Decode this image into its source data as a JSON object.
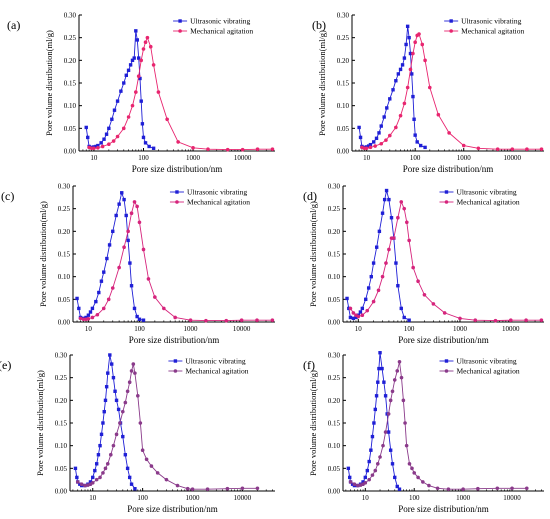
{
  "colors": {
    "ultrasonic": "#1f1fd6",
    "mechanical_ab": "#e8256f",
    "mechanical_cd": "#d6247c",
    "mechanical_ef": "#8a3a8a",
    "axis": "#000000"
  },
  "chart_data": [
    {
      "type": "line",
      "panel_label": "(a)",
      "xlabel": "Pore size distribution/nm",
      "ylabel": "Pore volume distribution(ml/g)",
      "x_scale": "log",
      "xlim": [
        5,
        45000
      ],
      "ylim": [
        0,
        0.3
      ],
      "x_tick_labels": [
        "10",
        "100",
        "1000",
        "10000"
      ],
      "y_tick_labels": [
        "0.00",
        "0.05",
        "0.10",
        "0.15",
        "0.20",
        "0.25",
        "0.30"
      ],
      "legend_position": "top-right",
      "series": [
        {
          "name": "Ultrasonic vibrating",
          "color_key": "ultrasonic",
          "marker": "square",
          "x": [
            7,
            7.5,
            8,
            9,
            10,
            11,
            12,
            14,
            16,
            18,
            20,
            23,
            26,
            30,
            35,
            40,
            45,
            50,
            55,
            60,
            65,
            70,
            75,
            80,
            85,
            90,
            95,
            100,
            110,
            130,
            160
          ],
          "y": [
            0.052,
            0.03,
            0.01,
            0.008,
            0.009,
            0.01,
            0.012,
            0.018,
            0.026,
            0.037,
            0.05,
            0.07,
            0.09,
            0.11,
            0.132,
            0.15,
            0.167,
            0.178,
            0.19,
            0.2,
            0.205,
            0.265,
            0.245,
            0.205,
            0.16,
            0.11,
            0.06,
            0.03,
            0.018,
            0.01,
            0.006
          ]
        },
        {
          "name": "Mechanical agitation",
          "color_key": "mechanical_ab",
          "marker": "circle",
          "x": [
            8,
            9,
            10,
            12,
            15,
            20,
            25,
            30,
            40,
            50,
            60,
            70,
            80,
            90,
            100,
            110,
            120,
            140,
            160,
            200,
            300,
            500,
            1000,
            2000,
            5000,
            10000,
            20000,
            40000
          ],
          "y": [
            0.008,
            0.006,
            0.006,
            0.007,
            0.01,
            0.015,
            0.022,
            0.032,
            0.05,
            0.075,
            0.1,
            0.13,
            0.165,
            0.2,
            0.225,
            0.24,
            0.25,
            0.23,
            0.19,
            0.13,
            0.07,
            0.02,
            0.007,
            0.004,
            0.003,
            0.003,
            0.004,
            0.004
          ]
        }
      ]
    },
    {
      "type": "line",
      "panel_label": "(b)",
      "xlabel": "Pore size distribution/nm",
      "ylabel": "Pore volume distribution(ml/g)",
      "x_scale": "log",
      "xlim": [
        5,
        45000
      ],
      "ylim": [
        0,
        0.3
      ],
      "x_tick_labels": [
        "10",
        "100",
        "1000",
        "10000"
      ],
      "y_tick_labels": [
        "0.00",
        "0.05",
        "0.10",
        "0.15",
        "0.20",
        "0.25",
        "0.30"
      ],
      "legend_position": "top-right",
      "series": [
        {
          "name": "Ultrasonic vibrating",
          "color_key": "ultrasonic",
          "marker": "square",
          "x": [
            7,
            7.5,
            8,
            9,
            10,
            11,
            12,
            14,
            16,
            18,
            20,
            23,
            26,
            30,
            35,
            40,
            45,
            50,
            55,
            60,
            65,
            70,
            75,
            80,
            85,
            90,
            95,
            100,
            110,
            130,
            160
          ],
          "y": [
            0.052,
            0.03,
            0.01,
            0.008,
            0.009,
            0.011,
            0.014,
            0.02,
            0.028,
            0.04,
            0.055,
            0.075,
            0.095,
            0.115,
            0.135,
            0.155,
            0.17,
            0.18,
            0.19,
            0.205,
            0.235,
            0.275,
            0.25,
            0.215,
            0.17,
            0.12,
            0.07,
            0.035,
            0.02,
            0.012,
            0.008
          ]
        },
        {
          "name": "Mechanical agitation",
          "color_key": "mechanical_ab",
          "marker": "circle",
          "x": [
            8,
            9,
            10,
            12,
            15,
            20,
            25,
            30,
            40,
            50,
            60,
            70,
            80,
            90,
            100,
            110,
            120,
            140,
            160,
            200,
            300,
            500,
            1000,
            2000,
            5000,
            10000,
            20000,
            40000
          ],
          "y": [
            0.008,
            0.006,
            0.006,
            0.008,
            0.011,
            0.016,
            0.024,
            0.034,
            0.052,
            0.078,
            0.105,
            0.14,
            0.18,
            0.215,
            0.24,
            0.255,
            0.258,
            0.235,
            0.2,
            0.14,
            0.08,
            0.04,
            0.012,
            0.006,
            0.004,
            0.004,
            0.004,
            0.004
          ]
        }
      ]
    },
    {
      "type": "line",
      "panel_label": "(c)",
      "xlabel": "Pore size distribution/nm",
      "ylabel": "Pore volume distribution(ml/g)",
      "x_scale": "log",
      "xlim": [
        5,
        45000
      ],
      "ylim": [
        0,
        0.3
      ],
      "x_tick_labels": [
        "10",
        "100",
        "1000",
        "10000"
      ],
      "y_tick_labels": [
        "0.00",
        "0.05",
        "0.10",
        "0.15",
        "0.20",
        "0.25",
        "0.30"
      ],
      "legend_position": "top-right",
      "series": [
        {
          "name": "Ultrasonic vibrating",
          "color_key": "ultrasonic",
          "marker": "square",
          "x": [
            6,
            6.5,
            7,
            8,
            9,
            10,
            11,
            12,
            14,
            16,
            18,
            20,
            23,
            26,
            30,
            35,
            40,
            45,
            50,
            55,
            60,
            65,
            70,
            80,
            90,
            100,
            120
          ],
          "y": [
            0.052,
            0.03,
            0.01,
            0.008,
            0.01,
            0.015,
            0.022,
            0.03,
            0.045,
            0.065,
            0.09,
            0.11,
            0.14,
            0.17,
            0.2,
            0.235,
            0.26,
            0.285,
            0.27,
            0.235,
            0.18,
            0.13,
            0.08,
            0.03,
            0.012,
            0.006,
            0.004
          ]
        },
        {
          "name": "Mechanical agitation",
          "color_key": "mechanical_cd",
          "marker": "circle",
          "x": [
            7,
            8,
            9,
            10,
            12,
            15,
            20,
            25,
            30,
            40,
            50,
            60,
            70,
            80,
            90,
            100,
            120,
            150,
            200,
            300,
            500,
            1000,
            2000,
            5000,
            10000,
            20000,
            40000
          ],
          "y": [
            0.008,
            0.006,
            0.006,
            0.007,
            0.01,
            0.016,
            0.03,
            0.05,
            0.075,
            0.12,
            0.165,
            0.2,
            0.24,
            0.265,
            0.255,
            0.22,
            0.16,
            0.095,
            0.055,
            0.03,
            0.01,
            0.004,
            0.003,
            0.003,
            0.004,
            0.004,
            0.004
          ]
        }
      ]
    },
    {
      "type": "line",
      "panel_label": "(d)",
      "xlabel": "Pore size distribution/nm",
      "ylabel": "Pore volume distribution(ml/g)",
      "x_scale": "log",
      "xlim": [
        5,
        45000
      ],
      "ylim": [
        0,
        0.3
      ],
      "x_tick_labels": [
        "10",
        "100",
        "1000",
        "10000"
      ],
      "y_tick_labels": [
        "0.00",
        "0.05",
        "0.10",
        "0.15",
        "0.20",
        "0.25",
        "0.30"
      ],
      "legend_position": "top-right",
      "series": [
        {
          "name": "Ultrasonic vibrating",
          "color_key": "ultrasonic",
          "marker": "square",
          "x": [
            6,
            6.5,
            7,
            8,
            9,
            10,
            11,
            12,
            14,
            16,
            18,
            20,
            23,
            26,
            30,
            33,
            36,
            40,
            45,
            50,
            55,
            60,
            70,
            80,
            100
          ],
          "y": [
            0.052,
            0.03,
            0.01,
            0.008,
            0.01,
            0.015,
            0.022,
            0.03,
            0.05,
            0.075,
            0.1,
            0.13,
            0.165,
            0.2,
            0.24,
            0.27,
            0.29,
            0.27,
            0.23,
            0.185,
            0.13,
            0.08,
            0.03,
            0.01,
            0.004
          ]
        },
        {
          "name": "Mechanical agitation",
          "color_key": "mechanical_cd",
          "marker": "circle",
          "x": [
            7,
            8,
            9,
            10,
            12,
            15,
            20,
            25,
            30,
            35,
            40,
            45,
            50,
            60,
            70,
            80,
            90,
            100,
            120,
            150,
            200,
            300,
            500,
            1000,
            2000,
            5000,
            10000,
            20000,
            40000
          ],
          "y": [
            0.03,
            0.02,
            0.015,
            0.012,
            0.015,
            0.025,
            0.045,
            0.07,
            0.1,
            0.13,
            0.16,
            0.185,
            0.185,
            0.23,
            0.265,
            0.25,
            0.22,
            0.18,
            0.12,
            0.09,
            0.06,
            0.04,
            0.02,
            0.008,
            0.004,
            0.003,
            0.004,
            0.004,
            0.004
          ]
        }
      ]
    },
    {
      "type": "line",
      "panel_label": "(e)",
      "xlabel": "Pore size distribution/nm",
      "ylabel": "Pore volume distribution(ml/g)",
      "x_scale": "log",
      "xlim": [
        3.5,
        45000
      ],
      "ylim": [
        0,
        0.3
      ],
      "x_tick_labels": [
        "10",
        "100",
        "1000",
        "10000"
      ],
      "y_tick_labels": [
        "0.00",
        "0.05",
        "0.10",
        "0.15",
        "0.20",
        "0.25",
        "0.30"
      ],
      "legend_position": "top-right",
      "series": [
        {
          "name": "Ultrasonic vibrating",
          "color_key": "ultrasonic",
          "marker": "square",
          "x": [
            4.5,
            4.8,
            5,
            5.5,
            6,
            7,
            8,
            9,
            10,
            11,
            12,
            13,
            14,
            15,
            16,
            17,
            18,
            19,
            20,
            22,
            24,
            26,
            28,
            30,
            33,
            36,
            40,
            45,
            50,
            55,
            60,
            70
          ],
          "y": [
            0.05,
            0.03,
            0.02,
            0.015,
            0.012,
            0.012,
            0.015,
            0.02,
            0.03,
            0.045,
            0.06,
            0.08,
            0.1,
            0.125,
            0.15,
            0.175,
            0.2,
            0.23,
            0.26,
            0.3,
            0.28,
            0.25,
            0.22,
            0.2,
            0.18,
            0.15,
            0.12,
            0.08,
            0.05,
            0.03,
            0.015,
            0.005
          ]
        },
        {
          "name": "Mechanical agitation",
          "color_key": "mechanical_ef",
          "marker": "circle",
          "x": [
            5,
            6,
            7,
            8,
            9,
            10,
            12,
            14,
            16,
            18,
            20,
            23,
            26,
            30,
            35,
            40,
            45,
            50,
            55,
            60,
            65,
            70,
            80,
            90,
            100,
            120,
            150,
            200,
            300,
            500,
            800,
            1000,
            2000,
            5000,
            10000,
            20000
          ],
          "y": [
            0.02,
            0.015,
            0.012,
            0.013,
            0.015,
            0.018,
            0.025,
            0.03,
            0.04,
            0.05,
            0.06,
            0.08,
            0.1,
            0.125,
            0.15,
            0.175,
            0.195,
            0.22,
            0.24,
            0.265,
            0.28,
            0.26,
            0.21,
            0.15,
            0.09,
            0.07,
            0.055,
            0.04,
            0.025,
            0.012,
            0.005,
            0.004,
            0.004,
            0.005,
            0.006,
            0.006
          ]
        }
      ]
    },
    {
      "type": "line",
      "panel_label": "(f)",
      "xlabel": "Pore size distribution/nm",
      "ylabel": "Pore volume distribution(ml/g)",
      "x_scale": "log",
      "xlim": [
        3.5,
        45000
      ],
      "ylim": [
        0,
        0.3
      ],
      "x_tick_labels": [
        "10",
        "100",
        "1000",
        "10000"
      ],
      "y_tick_labels": [
        "0.00",
        "0.05",
        "0.10",
        "0.15",
        "0.20",
        "0.25",
        "0.30"
      ],
      "legend_position": "top-right",
      "series": [
        {
          "name": "Ultrasonic vibrating",
          "color_key": "ultrasonic",
          "marker": "square",
          "x": [
            4.5,
            4.8,
            5,
            5.5,
            6,
            7,
            8,
            9,
            10,
            11,
            12,
            13,
            14,
            15,
            16,
            17,
            18,
            19,
            20,
            22,
            24,
            26,
            28,
            30,
            33,
            36,
            40,
            45,
            50
          ],
          "y": [
            0.05,
            0.03,
            0.02,
            0.015,
            0.012,
            0.012,
            0.015,
            0.02,
            0.03,
            0.045,
            0.065,
            0.09,
            0.12,
            0.15,
            0.18,
            0.21,
            0.24,
            0.27,
            0.305,
            0.27,
            0.24,
            0.21,
            0.17,
            0.13,
            0.09,
            0.06,
            0.03,
            0.01,
            0.004
          ]
        },
        {
          "name": "Mechanical agitation",
          "color_key": "mechanical_ef",
          "marker": "circle",
          "x": [
            5,
            6,
            7,
            8,
            9,
            10,
            12,
            14,
            16,
            18,
            20,
            23,
            26,
            30,
            33,
            36,
            40,
            45,
            50,
            55,
            60,
            65,
            70,
            80,
            90,
            100,
            120,
            150,
            200,
            300,
            500,
            1000,
            2000,
            5000,
            10000,
            20000
          ],
          "y": [
            0.02,
            0.015,
            0.012,
            0.013,
            0.015,
            0.018,
            0.025,
            0.035,
            0.045,
            0.06,
            0.075,
            0.1,
            0.13,
            0.17,
            0.2,
            0.22,
            0.245,
            0.265,
            0.285,
            0.25,
            0.2,
            0.15,
            0.1,
            0.06,
            0.05,
            0.04,
            0.03,
            0.02,
            0.012,
            0.006,
            0.004,
            0.004,
            0.005,
            0.006,
            0.006,
            0.006
          ]
        }
      ]
    }
  ]
}
